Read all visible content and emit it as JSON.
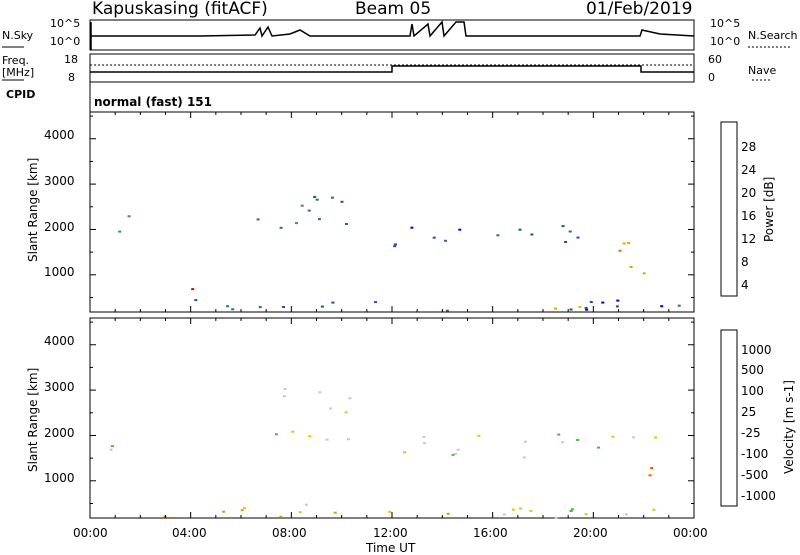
{
  "header": {
    "station": "Kapuskasing (fitACF)",
    "beam": "Beam 05",
    "date": "01/Feb/2019"
  },
  "top_panels": {
    "nsky_label": "N.Sky",
    "nsearch_label": "N.Search",
    "nsky_ticks": [
      "10^5",
      "10^0"
    ],
    "nsearch_ticks": [
      "10^5",
      "10^0"
    ],
    "freq_label": "Freq.",
    "freq_unit": "[MHz]",
    "freq_ticks": [
      "18",
      "8"
    ],
    "nave_label": "Nave",
    "nave_ticks": [
      "60",
      "0"
    ],
    "cpid_label": "CPID",
    "cpid_value": "normal (fast) 151"
  },
  "colors": {
    "power": [
      "#0000e0",
      "#1f4fa8",
      "#2f6e78",
      "#3a9060",
      "#c8c800",
      "#f0a000",
      "#ff6000",
      "#e00000"
    ],
    "velocity": [
      "#2040c0",
      "#3070b0",
      "#208040",
      "#40c030",
      "#c8c8c8",
      "#f0c000",
      "#f09000",
      "#f06000",
      "#e00000"
    ]
  },
  "chart_data": [
    {
      "type": "heatmap",
      "title": "",
      "ylabel": "Slant Range [km]",
      "xlabel": "",
      "colorbar_label": "Power [dB]",
      "colorbar_ticks": [
        "28",
        "24",
        "20",
        "16",
        "12",
        "8",
        "4"
      ],
      "y_ticks": [
        "4000",
        "3000",
        "2000",
        "1000"
      ],
      "ylim": [
        180,
        4590
      ],
      "xlim": [
        0,
        24
      ],
      "regions": [
        {
          "t": [
            0.4,
            1.5
          ],
          "r": [
            1700,
            2600
          ],
          "level": 3
        },
        {
          "t": [
            0.0,
            24.0
          ],
          "r": [
            200,
            500
          ],
          "level": 1
        },
        {
          "t": [
            6.6,
            10.3
          ],
          "r": [
            1900,
            3100
          ],
          "level": 2
        },
        {
          "t": [
            12.0,
            20.5
          ],
          "r": [
            1500,
            2100
          ],
          "level": 1
        },
        {
          "t": [
            20.8,
            22.5
          ],
          "r": [
            900,
            2100
          ],
          "level": 5
        },
        {
          "t": [
            3.6,
            4.2
          ],
          "r": [
            500,
            900
          ],
          "level": 7
        },
        {
          "t": [
            17.0,
            20.0
          ],
          "r": [
            250,
            450
          ],
          "level": 4
        }
      ]
    },
    {
      "type": "heatmap",
      "title": "",
      "ylabel": "Slant Range [km]",
      "xlabel": "Time UT",
      "colorbar_label": "Velocity [m s-1]",
      "colorbar_ticks": [
        "1000",
        "500",
        "100",
        "25",
        "-25",
        "-100",
        "-500",
        "-1000"
      ],
      "y_ticks": [
        "4000",
        "3000",
        "2000",
        "1000"
      ],
      "x_ticks": [
        "00:00",
        "04:00",
        "08:00",
        "12:00",
        "16:00",
        "20:00",
        "00:00"
      ],
      "ylim": [
        180,
        4590
      ],
      "xlim": [
        0,
        24
      ],
      "regions": [
        {
          "t": [
            0.4,
            1.5
          ],
          "r": [
            1700,
            2600
          ],
          "level": 4
        },
        {
          "t": [
            0.0,
            24.0
          ],
          "r": [
            200,
            500
          ],
          "level": 5
        },
        {
          "t": [
            6.6,
            10.3
          ],
          "r": [
            1900,
            3100
          ],
          "level": 4
        },
        {
          "t": [
            12.0,
            22.5
          ],
          "r": [
            1500,
            2100
          ],
          "level": 4
        },
        {
          "t": [
            20.8,
            22.3
          ],
          "r": [
            900,
            1500
          ],
          "level": 7
        },
        {
          "t": [
            17.0,
            20.0
          ],
          "r": [
            250,
            450
          ],
          "level": 3
        }
      ]
    }
  ]
}
